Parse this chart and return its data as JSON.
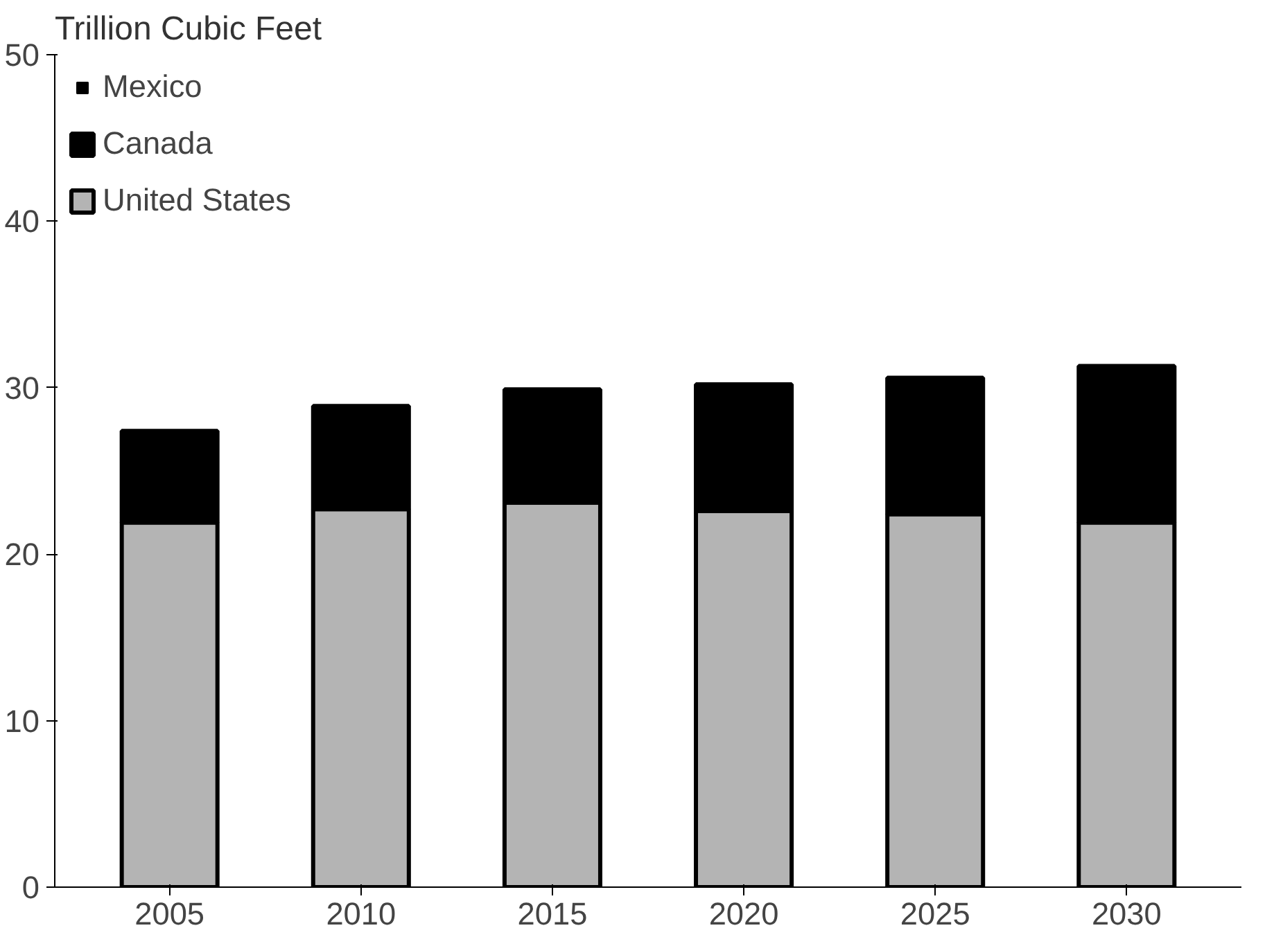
{
  "chart_data": {
    "type": "bar",
    "stacked": true,
    "ylabel": "Trillion Cubic Feet",
    "categories": [
      "2005",
      "2010",
      "2015",
      "2020",
      "2025",
      "2030"
    ],
    "series": [
      {
        "name": "United States",
        "color": "#b4b4b4",
        "values": [
          21.9,
          22.7,
          23.1,
          22.6,
          22.4,
          21.9
        ]
      },
      {
        "name": "Canada",
        "color": "#000000",
        "values": [
          5.5,
          6.2,
          6.8,
          7.6,
          8.2,
          9.4
        ]
      },
      {
        "name": "Mexico",
        "color": "#000000",
        "values": [
          null,
          null,
          null,
          null,
          null,
          null
        ]
      }
    ],
    "ylim": [
      0,
      50
    ],
    "yticks": [
      0,
      10,
      20,
      30,
      40,
      50
    ],
    "grid": false,
    "legend": "top left"
  }
}
